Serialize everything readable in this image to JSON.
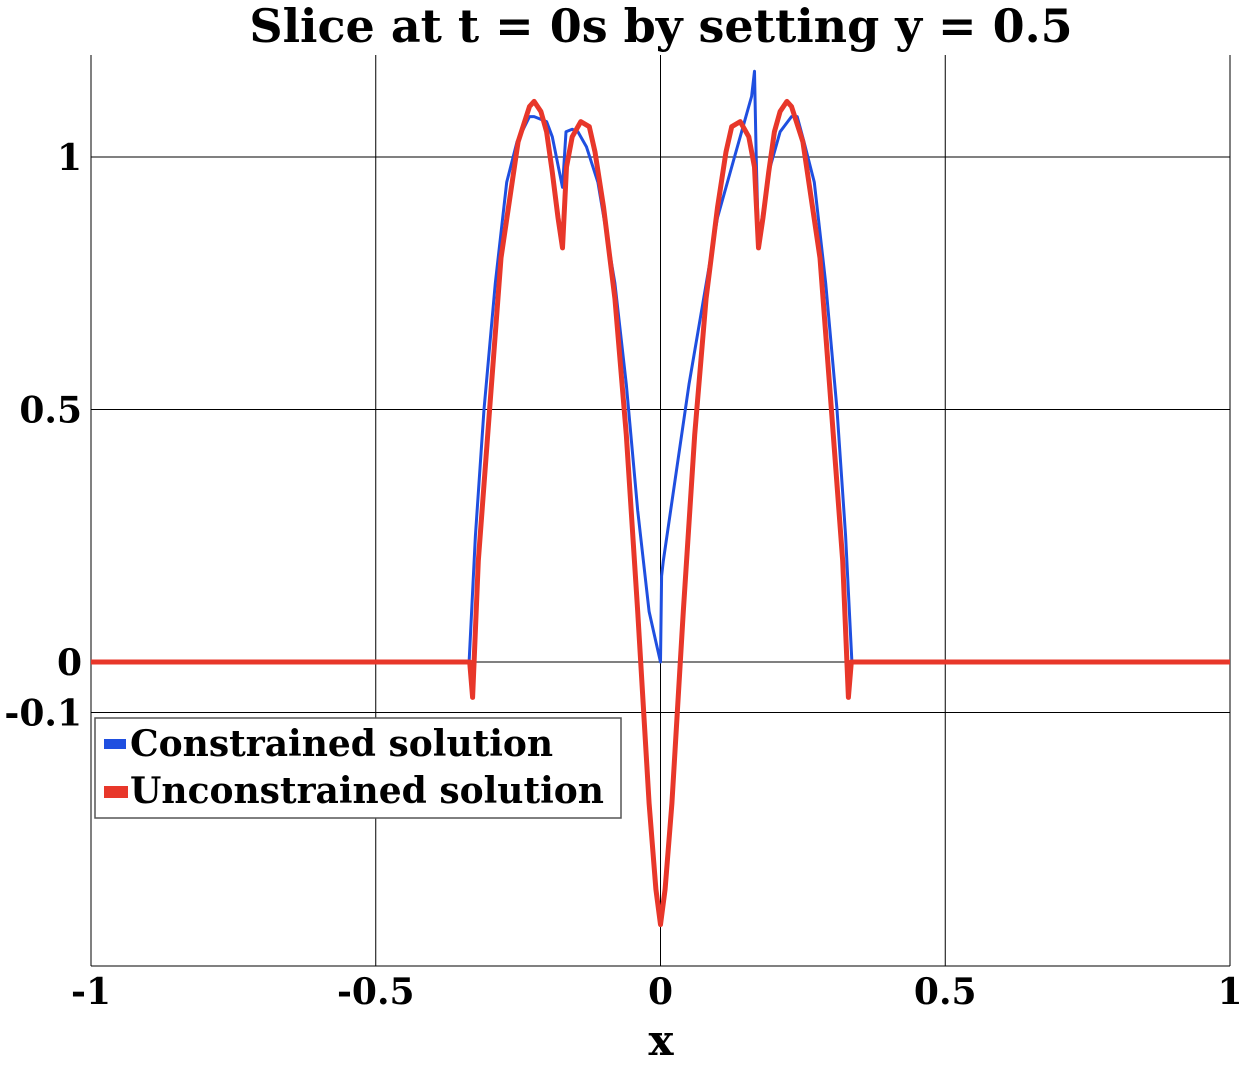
{
  "chart_data": {
    "type": "line",
    "title": "Slice at t = 0s by setting y = 0.5",
    "xlabel": "x",
    "ylabel": "",
    "xlim": [
      -1,
      1
    ],
    "ylim": [
      -0.6,
      1.2
    ],
    "grid": true,
    "legend_position": "left",
    "x_ticks": [
      {
        "value": -1,
        "label": "-1"
      },
      {
        "value": -0.5,
        "label": "-0.5"
      },
      {
        "value": 0,
        "label": "0"
      },
      {
        "value": 0.5,
        "label": "0.5"
      },
      {
        "value": 1,
        "label": "1"
      }
    ],
    "y_ticks": [
      {
        "value": 1,
        "label": "1"
      },
      {
        "value": 0.5,
        "label": "0.5"
      },
      {
        "value": 0,
        "label": "0"
      },
      {
        "value": -0.1,
        "label": "-0.1"
      }
    ],
    "series": [
      {
        "name": "Constrained solution",
        "color": "#1f4fe0",
        "x": [
          -1,
          -0.336,
          -0.325,
          -0.31,
          -0.29,
          -0.27,
          -0.252,
          -0.23,
          -0.222,
          -0.2,
          -0.19,
          -0.172,
          -0.166,
          -0.155,
          -0.145,
          -0.13,
          -0.11,
          -0.08,
          -0.06,
          -0.04,
          -0.02,
          -0.008,
          0,
          0.002,
          0.005,
          0.05,
          0.1,
          0.13,
          0.16,
          0.165,
          0.168,
          0.172,
          0.19,
          0.21,
          0.23,
          0.24,
          0.252,
          0.27,
          0.29,
          0.31,
          0.325,
          0.336,
          1
        ],
        "values": [
          0,
          0,
          0.25,
          0.5,
          0.75,
          0.95,
          1.03,
          1.08,
          1.08,
          1.07,
          1.04,
          0.94,
          1.05,
          1.055,
          1.05,
          1.02,
          0.95,
          0.75,
          0.55,
          0.3,
          0.1,
          0.04,
          0.0,
          0.17,
          0.2,
          0.55,
          0.88,
          1.0,
          1.12,
          1.17,
          1.0,
          0.83,
          0.97,
          1.05,
          1.08,
          1.08,
          1.03,
          0.95,
          0.75,
          0.5,
          0.25,
          0,
          0
        ]
      },
      {
        "name": "Unconstrained solution",
        "color": "#e8372a",
        "x": [
          -1,
          -0.335,
          -0.33,
          -0.32,
          -0.3,
          -0.28,
          -0.25,
          -0.23,
          -0.222,
          -0.21,
          -0.2,
          -0.19,
          -0.18,
          -0.172,
          -0.165,
          -0.155,
          -0.14,
          -0.125,
          -0.115,
          -0.1,
          -0.08,
          -0.06,
          -0.04,
          -0.02,
          -0.008,
          0,
          0.008,
          0.02,
          0.04,
          0.06,
          0.08,
          0.1,
          0.115,
          0.125,
          0.14,
          0.155,
          0.165,
          0.172,
          0.18,
          0.19,
          0.2,
          0.21,
          0.222,
          0.23,
          0.25,
          0.28,
          0.3,
          0.32,
          0.33,
          0.335,
          1
        ],
        "values": [
          0,
          0,
          -0.07,
          0.2,
          0.5,
          0.8,
          1.03,
          1.1,
          1.11,
          1.09,
          1.05,
          0.97,
          0.88,
          0.82,
          0.98,
          1.04,
          1.07,
          1.06,
          1.01,
          0.9,
          0.72,
          0.45,
          0.1,
          -0.28,
          -0.45,
          -0.52,
          -0.45,
          -0.28,
          0.1,
          0.45,
          0.72,
          0.9,
          1.01,
          1.06,
          1.07,
          1.04,
          0.98,
          0.82,
          0.88,
          0.97,
          1.05,
          1.09,
          1.11,
          1.1,
          1.03,
          0.8,
          0.5,
          0.2,
          -0.07,
          0,
          0
        ]
      }
    ]
  }
}
